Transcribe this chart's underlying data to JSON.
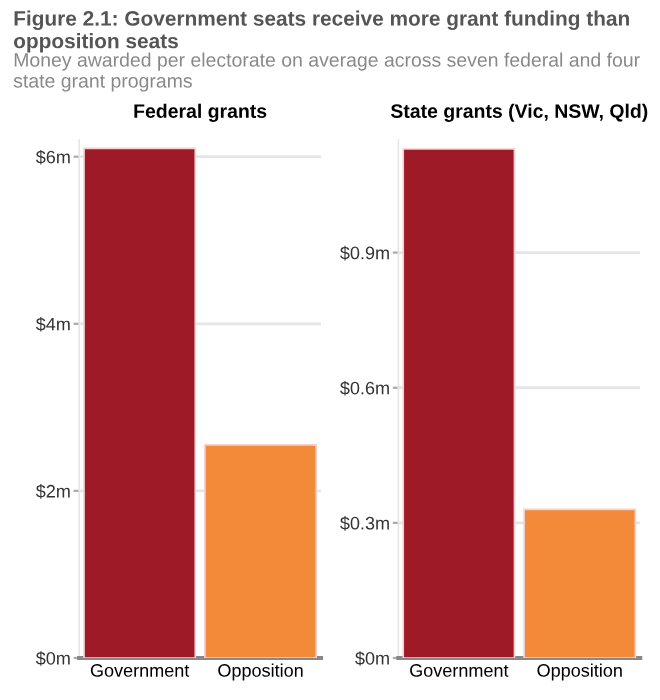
{
  "chart_data": [
    {
      "type": "bar",
      "title": "Federal grants",
      "categories": [
        "Government",
        "Opposition"
      ],
      "values": [
        6.1,
        2.55
      ],
      "colors": [
        "#9e1a27",
        "#f28a3a"
      ],
      "ylim": [
        0,
        6.2
      ],
      "yticks": [
        {
          "value": 0,
          "label": "$0m"
        },
        {
          "value": 2,
          "label": "$2m"
        },
        {
          "value": 4,
          "label": "$4m"
        },
        {
          "value": 6,
          "label": "$6m"
        }
      ],
      "grid": "y",
      "annotations": [
        "Figure 2.1: Government seats receive more grant funding than opposition seats",
        "Money awarded per electorate on average across seven federal and four state grant programs"
      ]
    },
    {
      "type": "bar",
      "title": "State grants (Vic, NSW, Qld)",
      "categories": [
        "Government",
        "Opposition"
      ],
      "values": [
        1.13,
        0.33
      ],
      "colors": [
        "#9e1a27",
        "#f28a3a"
      ],
      "ylim": [
        0,
        1.15
      ],
      "yticks": [
        {
          "value": 0,
          "label": "$0m"
        },
        {
          "value": 0.3,
          "label": "$0.3m"
        },
        {
          "value": 0.6,
          "label": "$0.6m"
        },
        {
          "value": 0.9,
          "label": "$0.9m"
        }
      ],
      "grid": "y"
    }
  ]
}
